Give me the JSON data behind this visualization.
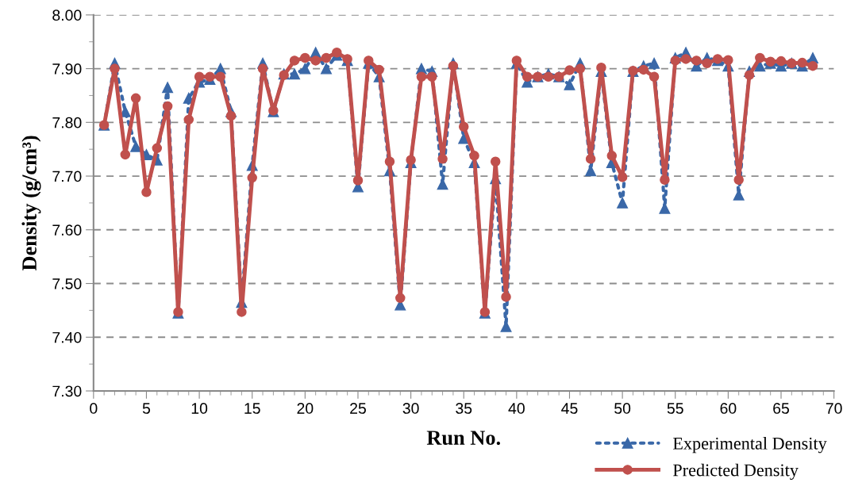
{
  "chart_data": {
    "type": "line",
    "xlabel": "Run No.",
    "ylabel": "Density (g/cm³)",
    "x": [
      1,
      2,
      3,
      4,
      5,
      6,
      7,
      8,
      9,
      10,
      11,
      12,
      13,
      14,
      15,
      16,
      17,
      18,
      19,
      20,
      21,
      22,
      23,
      24,
      25,
      26,
      27,
      28,
      29,
      30,
      31,
      32,
      33,
      34,
      35,
      36,
      37,
      38,
      39,
      40,
      41,
      42,
      43,
      44,
      45,
      46,
      47,
      48,
      49,
      50,
      51,
      52,
      53,
      54,
      55,
      56,
      57,
      58,
      59,
      60,
      61,
      62,
      63,
      64,
      65,
      66,
      67,
      68
    ],
    "xlim": [
      0,
      70
    ],
    "xticks": [
      0,
      5,
      10,
      15,
      20,
      25,
      30,
      35,
      40,
      45,
      50,
      55,
      60,
      65,
      70
    ],
    "ylim": [
      7.3,
      8.0
    ],
    "yticks": [
      {
        "value": 7.3,
        "label": "7.30"
      },
      {
        "value": 7.4,
        "label": "7.40"
      },
      {
        "value": 7.5,
        "label": "7.50"
      },
      {
        "value": 7.6,
        "label": "7.60"
      },
      {
        "value": 7.7,
        "label": "7.70"
      },
      {
        "value": 7.8,
        "label": "7.80"
      },
      {
        "value": 7.9,
        "label": "7.90"
      },
      {
        "value": 8.0,
        "label": "8.00"
      }
    ],
    "grid": "y",
    "legend": "bottom right",
    "series": [
      {
        "name": "Experimental Density",
        "color": "#3a68a8",
        "marker": "triangle",
        "line_style": "dotted",
        "values": [
          7.795,
          7.91,
          7.82,
          7.755,
          7.74,
          7.73,
          7.865,
          7.445,
          7.845,
          7.875,
          7.88,
          7.9,
          7.82,
          7.465,
          7.72,
          7.91,
          7.82,
          7.89,
          7.89,
          7.9,
          7.93,
          7.9,
          7.925,
          7.915,
          7.68,
          7.91,
          7.885,
          7.71,
          7.46,
          7.725,
          7.9,
          7.895,
          7.685,
          7.91,
          7.77,
          7.725,
          7.445,
          7.695,
          7.42,
          7.91,
          7.875,
          7.885,
          7.89,
          7.885,
          7.87,
          7.91,
          7.71,
          7.895,
          7.725,
          7.65,
          7.895,
          7.905,
          7.91,
          7.64,
          7.92,
          7.93,
          7.905,
          7.92,
          7.915,
          7.905,
          7.665,
          7.895,
          7.905,
          7.91,
          7.905,
          7.91,
          7.905,
          7.92
        ]
      },
      {
        "name": "Predicted Density",
        "color": "#c0504d",
        "marker": "circle",
        "line_style": "solid",
        "values": [
          7.795,
          7.9,
          7.74,
          7.845,
          7.67,
          7.752,
          7.83,
          7.447,
          7.805,
          7.885,
          7.885,
          7.885,
          7.812,
          7.447,
          7.697,
          7.9,
          7.822,
          7.888,
          7.915,
          7.92,
          7.915,
          7.92,
          7.93,
          7.918,
          7.692,
          7.915,
          7.898,
          7.727,
          7.473,
          7.73,
          7.885,
          7.885,
          7.732,
          7.905,
          7.792,
          7.738,
          7.447,
          7.727,
          7.475,
          7.915,
          7.885,
          7.885,
          7.885,
          7.885,
          7.897,
          7.9,
          7.732,
          7.902,
          7.738,
          7.698,
          7.896,
          7.898,
          7.885,
          7.693,
          7.915,
          7.918,
          7.915,
          7.91,
          7.918,
          7.916,
          7.693,
          7.888,
          7.92,
          7.913,
          7.914,
          7.91,
          7.911,
          7.905
        ]
      }
    ]
  }
}
